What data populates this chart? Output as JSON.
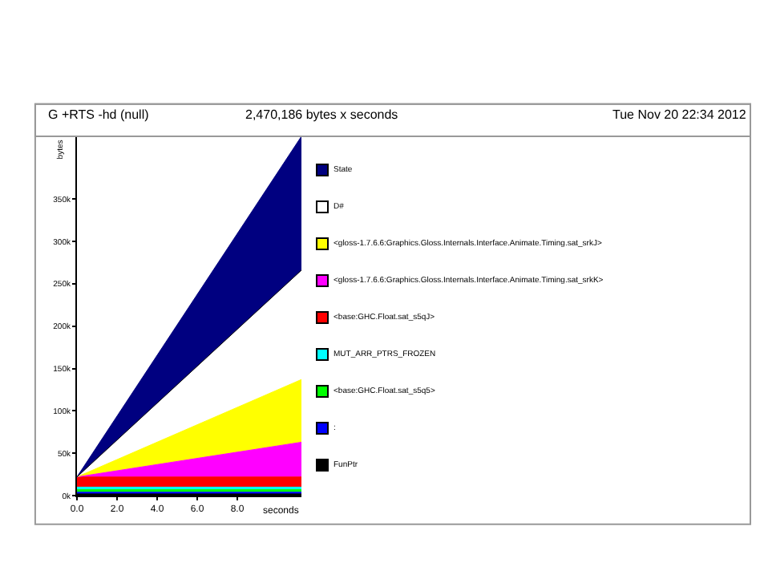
{
  "chart_data": {
    "type": "area",
    "stacked": true,
    "title": "G +RTS -hd (null)",
    "subtitle": "2,470,186 bytes x seconds",
    "annotations": [
      "Tue Nov 20 22:34 2012"
    ],
    "xlabel": "seconds",
    "ylabel": "bytes",
    "x": [
      0,
      11.2
    ],
    "series": [
      {
        "name": "FunPtr",
        "color": "#000000",
        "values": [
          2000,
          2000
        ]
      },
      {
        "name": ":",
        "color": "#0000ff",
        "values": [
          2000,
          2000
        ]
      },
      {
        "name": "<base:GHC.Float.sat_s5q5>",
        "color": "#00ff00",
        "values": [
          3000,
          3000
        ]
      },
      {
        "name": "MUT_ARR_PTRS_FROZEN",
        "color": "#00ffff",
        "values": [
          3000,
          3000
        ]
      },
      {
        "name": "<base:GHC.Float.sat_s5qJ>",
        "color": "#ff0000",
        "values": [
          12000,
          12000
        ]
      },
      {
        "name": "<gloss-1.7.6.6:Graphics.Gloss.Internals.Interface.Animate.Timing.sat_srkK>",
        "color": "#ff00ff",
        "values": [
          0,
          41000
        ]
      },
      {
        "name": "<gloss-1.7.6.6:Graphics.Gloss.Internals.Interface.Animate.Timing.sat_srkJ>",
        "color": "#ffff00",
        "values": [
          0,
          74000
        ]
      },
      {
        "name": "D#",
        "color": "#ffffff",
        "values": [
          0,
          129000
        ]
      },
      {
        "name": "State",
        "color": "#000080",
        "values": [
          0,
          158000
        ]
      }
    ],
    "xlim": [
      0,
      11.2
    ],
    "xticks": [
      {
        "value": 0,
        "label": "0.0"
      },
      {
        "value": 2,
        "label": "2.0"
      },
      {
        "value": 4,
        "label": "4.0"
      },
      {
        "value": 6,
        "label": "6.0"
      },
      {
        "value": 8,
        "label": "8.0"
      }
    ],
    "ylim": [
      0,
      424000
    ],
    "yticks": [
      {
        "value": 0,
        "label": "0k"
      },
      {
        "value": 50000,
        "label": "50k"
      },
      {
        "value": 100000,
        "label": "100k"
      },
      {
        "value": 150000,
        "label": "150k"
      },
      {
        "value": 200000,
        "label": "200k"
      },
      {
        "value": 250000,
        "label": "250k"
      },
      {
        "value": 300000,
        "label": "300k"
      },
      {
        "value": 350000,
        "label": "350k"
      }
    ],
    "grid": false,
    "legend": "right"
  }
}
